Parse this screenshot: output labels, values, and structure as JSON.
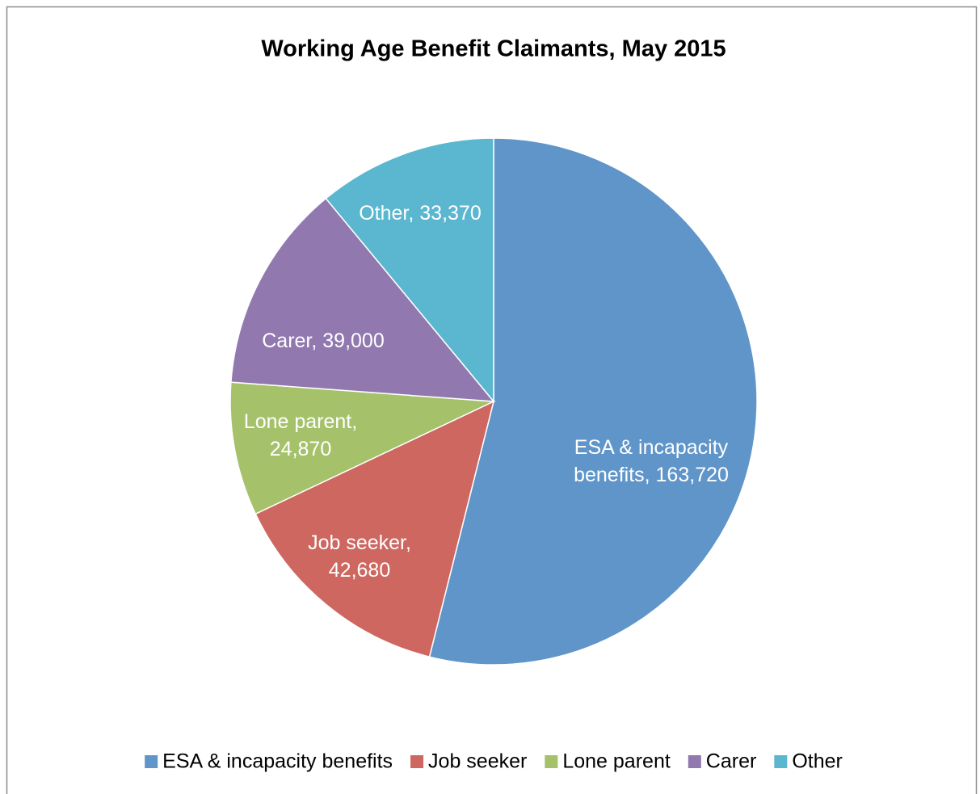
{
  "chart_data": {
    "type": "pie",
    "title": "Working Age Benefit Claimants, May 2015",
    "categories": [
      "ESA & incapacity benefits",
      "Job seeker",
      "Lone parent",
      "Carer",
      "Other"
    ],
    "values": [
      163720,
      42680,
      24870,
      39000,
      33370
    ],
    "value_labels": [
      "ESA & incapacity benefits, 163,720",
      "Job seeker, 42,680",
      "Lone parent, 24,870",
      "Carer, 39,000",
      "Other, 33,370"
    ],
    "colors": [
      "#6095c9",
      "#cd6760",
      "#a5c26b",
      "#9179b0",
      "#5bb6cf"
    ],
    "legend": "bottom"
  }
}
